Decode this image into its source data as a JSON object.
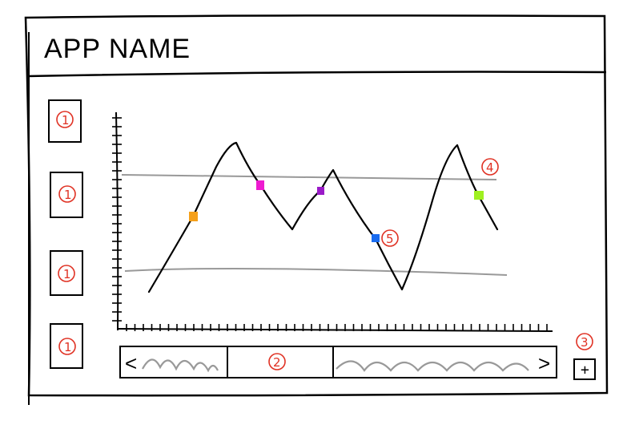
{
  "app": {
    "title": "APP NAME"
  },
  "sidebar": {
    "buttons": [
      {
        "label": "1"
      },
      {
        "label": "1"
      },
      {
        "label": "1"
      },
      {
        "label": "1"
      }
    ]
  },
  "callouts": {
    "scrollbar_thumb": "2",
    "zoom_control": "3",
    "upper_threshold": "4",
    "data_point_label": "5"
  },
  "scrollbar": {
    "left_arrow": "<",
    "right_arrow": ">"
  },
  "zoom": {
    "label": "+"
  },
  "chart_data": {
    "type": "line",
    "series": [
      {
        "values": []
      }
    ],
    "markers": [
      {
        "color": "#f5a01a"
      },
      {
        "color": "#ee1ad0"
      },
      {
        "color": "#9a1ac8"
      },
      {
        "color": "#1a6cf0"
      },
      {
        "color": "#9ff020"
      }
    ],
    "threshold_lines": 2,
    "grid": false,
    "line_color": "#000000",
    "threshold_color": "#999999"
  }
}
